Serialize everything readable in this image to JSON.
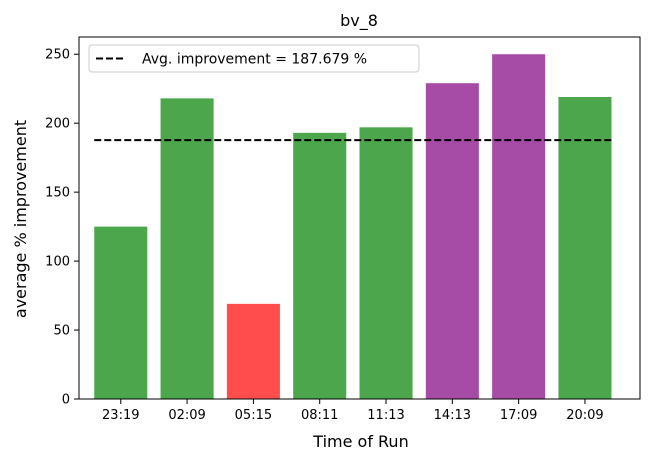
{
  "chart_data": {
    "type": "bar",
    "title": "bv_8",
    "xlabel": "Time of Run",
    "ylabel": "average % improvement",
    "categories": [
      "23:19",
      "02:09",
      "05:15",
      "08:11",
      "11:13",
      "14:13",
      "17:09",
      "20:09"
    ],
    "values": [
      125,
      218,
      69,
      193,
      197,
      229,
      250,
      219
    ],
    "bar_colors": [
      "#4ca64c",
      "#4ca64c",
      "#ff4c4c",
      "#4ca64c",
      "#4ca64c",
      "#a64ca6",
      "#a64ca6",
      "#4ca64c"
    ],
    "ylim": [
      0,
      262.5
    ],
    "yticks": [
      0,
      50,
      100,
      150,
      200,
      250
    ],
    "average_line": {
      "value": 187.679,
      "color": "#000000",
      "style": "dashed"
    },
    "legend": {
      "label": "Avg. improvement = 187.679 %",
      "position": "upper-left"
    },
    "grid": false
  }
}
